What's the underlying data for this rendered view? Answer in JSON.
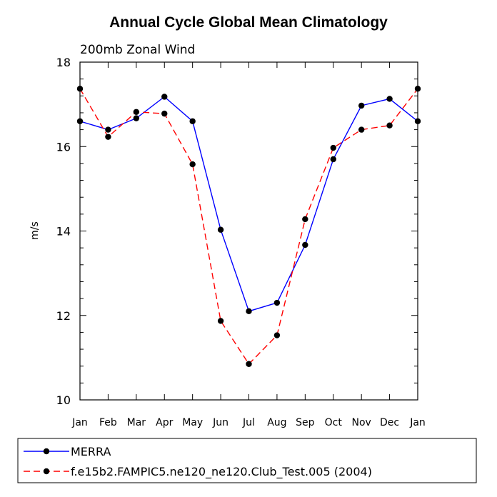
{
  "chart_data": {
    "type": "line",
    "title": "Annual Cycle Global Mean Climatology",
    "subtitle": "200mb Zonal Wind",
    "xlabel": "",
    "ylabel": "m/s",
    "ylim": [
      10,
      18
    ],
    "yticks": [
      10,
      12,
      14,
      16,
      18
    ],
    "categories": [
      "Jan",
      "Feb",
      "Mar",
      "Apr",
      "May",
      "Jun",
      "Jul",
      "Aug",
      "Sep",
      "Oct",
      "Nov",
      "Dec",
      "Jan"
    ],
    "series": [
      {
        "name": "MERRA",
        "color": "#0000ff",
        "dash": "solid",
        "values": [
          16.6,
          16.4,
          16.67,
          17.18,
          16.6,
          14.03,
          12.1,
          12.3,
          13.67,
          15.7,
          16.97,
          17.13,
          16.6
        ]
      },
      {
        "name": "f.e15b2.FAMPIC5.ne120_ne120.Club_Test.005 (2004)",
        "color": "#ff0000",
        "dash": "dashed",
        "values": [
          17.37,
          16.23,
          16.82,
          16.78,
          15.58,
          11.87,
          10.85,
          11.53,
          14.28,
          15.97,
          16.4,
          16.5,
          17.37
        ]
      }
    ],
    "legend_position": "bottom"
  }
}
